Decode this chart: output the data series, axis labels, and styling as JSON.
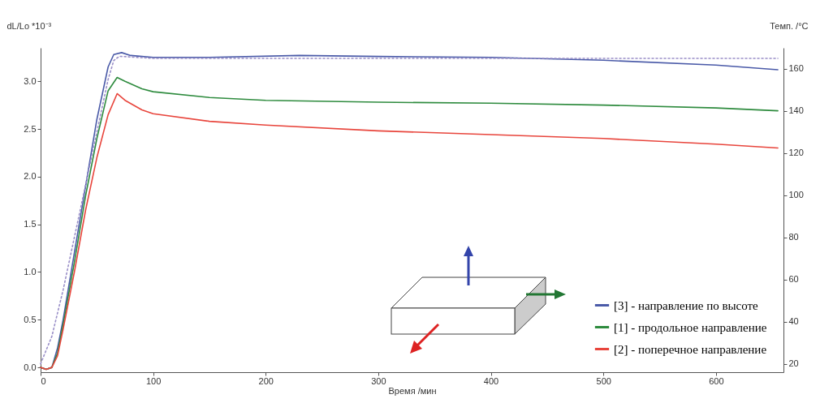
{
  "chart_data": {
    "type": "line",
    "xlabel": "Время /мин",
    "ylabel": "dL/Lo *10⁻³",
    "y2label": "Темп. /°C",
    "xlim": [
      0,
      660
    ],
    "xticks": [
      0,
      100,
      200,
      300,
      400,
      500,
      600
    ],
    "ylim": [
      -0.05,
      3.35
    ],
    "yticks": [
      {
        "value": 0,
        "label": "0.0"
      },
      0.5,
      {
        "value": 1,
        "label": "1.0"
      },
      1.5,
      {
        "value": 2,
        "label": "2.0"
      },
      2.5,
      {
        "value": 3,
        "label": "3.0"
      }
    ],
    "y2lim": [
      16,
      170
    ],
    "y2ticks": [
      20,
      40,
      60,
      80,
      100,
      120,
      140,
      160
    ],
    "grid": false,
    "legend": "bottom right",
    "marker": "none",
    "series": [
      {
        "name": "[3] - направление по высоте",
        "color": "#4a5aa8",
        "x": [
          0,
          5,
          10,
          15,
          20,
          30,
          40,
          50,
          60,
          65,
          72,
          80,
          100,
          150,
          230,
          300,
          400,
          500,
          600,
          655
        ],
        "values": [
          0,
          -0.02,
          0,
          0.2,
          0.5,
          1.2,
          1.9,
          2.6,
          3.15,
          3.28,
          3.3,
          3.27,
          3.25,
          3.25,
          3.27,
          3.26,
          3.25,
          3.22,
          3.17,
          3.12
        ]
      },
      {
        "name": "[1] - продольное направление",
        "color": "#2e8b3e",
        "x": [
          0,
          5,
          10,
          15,
          20,
          30,
          40,
          50,
          60,
          68,
          75,
          90,
          100,
          150,
          200,
          300,
          400,
          500,
          600,
          655
        ],
        "values": [
          0,
          -0.02,
          0,
          0.15,
          0.45,
          1.1,
          1.8,
          2.4,
          2.9,
          3.04,
          3.0,
          2.92,
          2.89,
          2.83,
          2.8,
          2.78,
          2.77,
          2.75,
          2.72,
          2.69
        ]
      },
      {
        "name": "[2] - поперечное направление",
        "color": "#e8453c",
        "x": [
          0,
          5,
          10,
          15,
          20,
          30,
          40,
          50,
          60,
          68,
          75,
          90,
          100,
          150,
          200,
          300,
          400,
          500,
          600,
          655
        ],
        "values": [
          0,
          -0.02,
          0,
          0.12,
          0.4,
          1.0,
          1.65,
          2.2,
          2.65,
          2.87,
          2.8,
          2.7,
          2.66,
          2.58,
          2.54,
          2.48,
          2.44,
          2.4,
          2.34,
          2.3
        ]
      },
      {
        "color": "#9a8fc8",
        "axis": "y2",
        "line_style": "dotted",
        "x": [
          0,
          10,
          20,
          30,
          40,
          50,
          60,
          65,
          70,
          100,
          300,
          655
        ],
        "values": [
          20,
          33,
          55,
          80,
          105,
          130,
          155,
          164,
          166,
          165,
          165,
          165
        ]
      }
    ]
  }
}
